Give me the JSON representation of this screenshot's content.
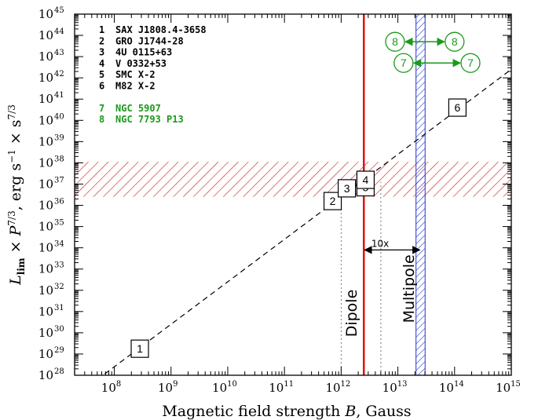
{
  "chart_data": {
    "type": "scatter",
    "title": "",
    "xlabel_parts": [
      "Magnetic field strength ",
      "B",
      ", Gauss"
    ],
    "ylabel_parts": [
      "L",
      "lim",
      " × ",
      "P",
      "7/3",
      ", erg s",
      "−1",
      " × s",
      "7/3"
    ],
    "xscale": "log",
    "yscale": "log",
    "xlim_exp": [
      7.3,
      15
    ],
    "ylim_exp": [
      28,
      45
    ],
    "x_tick_base": "10",
    "x_tick_exps": [
      "8",
      "9",
      "10",
      "11",
      "12",
      "13",
      "14",
      "15"
    ],
    "y_tick_base": "10",
    "y_tick_exps": [
      "28",
      "29",
      "30",
      "31",
      "32",
      "33",
      "34",
      "35",
      "36",
      "37",
      "38",
      "39",
      "40",
      "41",
      "42",
      "43",
      "44",
      "45"
    ],
    "colors": {
      "black": "#000000",
      "green": "#1a9a1a",
      "red": "#e01010",
      "blue": "#2233cc"
    },
    "legend": [
      {
        "num": "1",
        "name": "SAX J1808.4-3658",
        "color": "#000000"
      },
      {
        "num": "2",
        "name": "GRO J1744-28",
        "color": "#000000"
      },
      {
        "num": "3",
        "name": "4U 0115+63",
        "color": "#000000"
      },
      {
        "num": "4",
        "name": "V 0332+53",
        "color": "#000000"
      },
      {
        "num": "5",
        "name": "SMC X-2",
        "color": "#000000"
      },
      {
        "num": "6",
        "name": "M82 X-2",
        "color": "#000000"
      },
      {
        "num": "7",
        "name": "NGC 5907",
        "color": "#1a9a1a"
      },
      {
        "num": "8",
        "name": "NGC 7793 P13",
        "color": "#1a9a1a"
      }
    ],
    "trend_line": {
      "slope": 2,
      "intercept": 12.4
    },
    "points": [
      {
        "label": "1",
        "log_b": 8.45,
        "log_l": 29.25
      },
      {
        "label": "2",
        "log_b": 11.85,
        "log_l": 36.2
      },
      {
        "label": "3",
        "log_b": 12.1,
        "log_l": 36.8
      },
      {
        "label": "4",
        "log_b": 12.43,
        "log_l": 37.2
      },
      {
        "label": "5",
        "log_b": 12.43,
        "log_l": 36.85
      },
      {
        "label": "6",
        "log_b": 14.05,
        "log_l": 40.6
      }
    ],
    "ranges": [
      {
        "label": "8",
        "log_b_min": 12.95,
        "log_b_max": 14,
        "log_l": 43.7
      },
      {
        "label": "7",
        "log_b_min": 13.1,
        "log_b_max": 14.28,
        "log_l": 42.7
      }
    ],
    "luminosity_band_exp": [
      36.4,
      38.05
    ],
    "dipole_line_exp": 12.4,
    "multipole_band_exp": [
      13.32,
      13.48
    ],
    "dotted_lines": [
      {
        "log_b": 12.0,
        "log_l_top": 36.4
      },
      {
        "log_b": 12.7,
        "log_l_top": 37.1
      }
    ],
    "annotations": {
      "dipole": "Dipole",
      "multipole": "Multipole",
      "factor": "10x"
    },
    "annotation_positions_data": {
      "dipole_log_b": 12.2,
      "dipole_log_l": 29.8,
      "multipole_log_b": 13.2,
      "multipole_log_l": 31.2,
      "factor_log_b": 12.66,
      "factor_log_l": 34.05,
      "arrow_log_b": [
        12.4,
        13.4
      ],
      "arrow_log_l": 33.9
    }
  }
}
